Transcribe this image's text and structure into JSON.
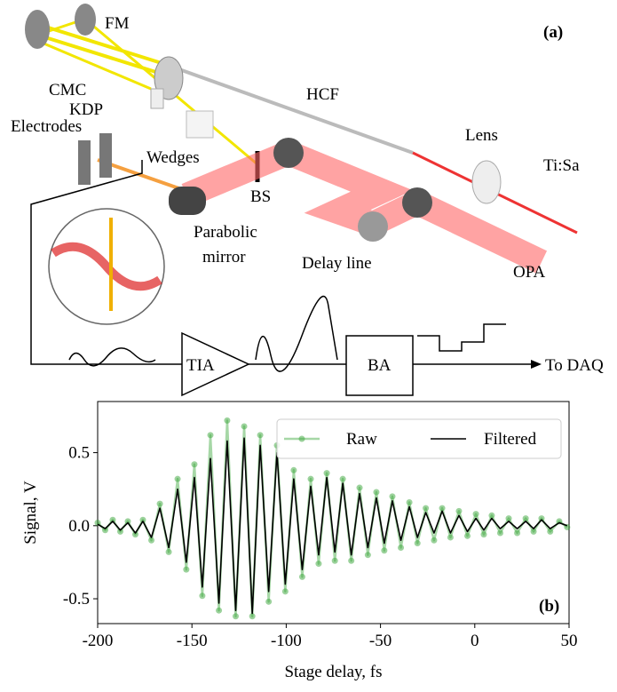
{
  "diagram": {
    "panel_label": "(a)",
    "labels": [
      "FM",
      "CMC",
      "KDP",
      "HCF",
      "Electrodes",
      "Wedges",
      "Lens",
      "Ti:Sa",
      "BS",
      "Parabolic",
      "mirror",
      "Delay line",
      "OPA",
      "TIA",
      "BA",
      "To DAQ"
    ]
  },
  "chart_data": {
    "type": "line",
    "annotation": "(b)",
    "xlabel": "Stage delay, fs",
    "ylabel": "Signal, V",
    "x": [
      -200,
      -196,
      -192,
      -188,
      -184,
      -180,
      -176,
      -171.5,
      -167,
      -162.3,
      -157.6,
      -153,
      -148.7,
      -144.5,
      -140.2,
      -135.7,
      -131.3,
      -126.8,
      -122.3,
      -118,
      -113.8,
      -109.3,
      -104.9,
      -100.5,
      -96,
      -91.5,
      -87,
      -82.8,
      -78.5,
      -74.2,
      -70,
      -65.5,
      -61.1,
      -56.7,
      -52.2,
      -48,
      -43.7,
      -39.2,
      -34.7,
      -30.4,
      -26,
      -21.6,
      -17.3,
      -12.9,
      -8.4,
      -3.9,
      0.6,
      4.8,
      9,
      13.5,
      18,
      22.5,
      27,
      31.2,
      35.4,
      40,
      44.8,
      49
    ],
    "series": [
      {
        "name": "Raw",
        "color": "#3aa63a",
        "style": "line-dots",
        "values": [
          0.02,
          -0.03,
          0.04,
          -0.04,
          0.03,
          -0.06,
          0.04,
          -0.1,
          0.15,
          -0.18,
          0.32,
          -0.3,
          0.42,
          -0.48,
          0.62,
          -0.58,
          0.72,
          -0.62,
          0.68,
          -0.62,
          0.62,
          -0.52,
          0.55,
          -0.45,
          0.38,
          -0.35,
          0.32,
          -0.26,
          0.36,
          -0.24,
          0.32,
          -0.24,
          0.26,
          -0.2,
          0.23,
          -0.17,
          0.2,
          -0.15,
          0.16,
          -0.12,
          0.12,
          -0.1,
          0.12,
          -0.08,
          0.1,
          -0.07,
          0.08,
          -0.06,
          0.07,
          -0.05,
          0.05,
          -0.05,
          0.05,
          -0.04,
          0.05,
          -0.04,
          0.03,
          -0.01
        ]
      },
      {
        "name": "Filtered",
        "color": "#000000",
        "style": "line",
        "values": [
          0.01,
          -0.02,
          0.03,
          -0.03,
          0.02,
          -0.05,
          0.03,
          -0.08,
          0.12,
          -0.15,
          0.25,
          -0.25,
          0.33,
          -0.42,
          0.46,
          -0.53,
          0.58,
          -0.58,
          0.6,
          -0.6,
          0.55,
          -0.45,
          0.5,
          -0.4,
          0.32,
          -0.3,
          0.27,
          -0.2,
          0.33,
          -0.18,
          0.29,
          -0.2,
          0.22,
          -0.15,
          0.19,
          -0.12,
          0.17,
          -0.1,
          0.13,
          -0.08,
          0.09,
          -0.05,
          0.1,
          -0.05,
          0.07,
          -0.04,
          0.05,
          -0.03,
          0.05,
          -0.02,
          0.03,
          -0.02,
          0.03,
          -0.02,
          0.04,
          -0.02,
          0.02,
          0
        ]
      }
    ],
    "xlim": [
      -200,
      50
    ],
    "xticks": [
      -200,
      -150,
      -100,
      -50,
      0,
      50
    ],
    "ylim": [
      -0.67,
      0.85
    ],
    "yticks": [
      -0.5,
      {
        "value": 0,
        "label": "0.0"
      },
      0.5
    ],
    "legend": "upper right"
  }
}
